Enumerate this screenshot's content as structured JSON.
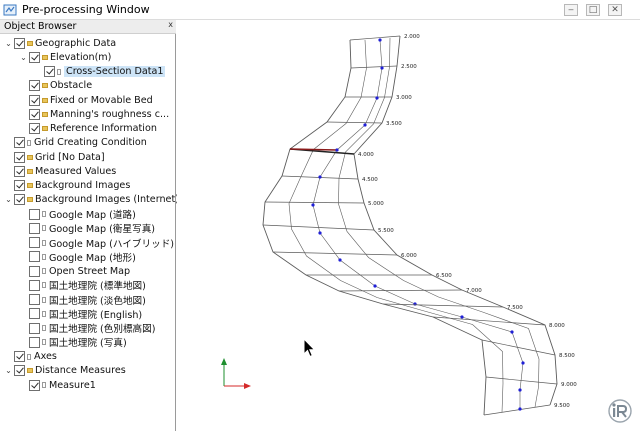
{
  "window": {
    "title": "Pre-processing Window",
    "minimize": "‒",
    "maximize": "□",
    "close": "✕"
  },
  "panel": {
    "title": "Object Browser",
    "close": "x"
  },
  "tree": [
    {
      "label": "Geographic Data",
      "checked": true,
      "arrow": "expanded",
      "icon": "folder",
      "level": 0
    },
    {
      "label": "Elevation(m)",
      "checked": true,
      "arrow": "expanded",
      "icon": "folder",
      "level": 1
    },
    {
      "label": "Cross-Section Data1",
      "checked": true,
      "arrow": "none",
      "icon": "doc",
      "level": 2,
      "selected": true
    },
    {
      "label": "Obstacle",
      "checked": true,
      "arrow": "none",
      "icon": "folder",
      "level": 1
    },
    {
      "label": "Fixed or Movable Bed",
      "checked": true,
      "arrow": "none",
      "icon": "folder",
      "level": 1
    },
    {
      "label": "Manning's roughness c...",
      "checked": true,
      "arrow": "none",
      "icon": "folder",
      "level": 1
    },
    {
      "label": "Reference Information",
      "checked": true,
      "arrow": "none",
      "icon": "folder",
      "level": 1
    },
    {
      "label": "Grid Creating Condition",
      "checked": true,
      "arrow": "none",
      "icon": "doc",
      "level": 0
    },
    {
      "label": "Grid [No Data]",
      "checked": true,
      "arrow": "none",
      "icon": "folder",
      "level": 0
    },
    {
      "label": "Measured Values",
      "checked": true,
      "arrow": "none",
      "icon": "folder",
      "level": 0
    },
    {
      "label": "Background Images",
      "checked": true,
      "arrow": "none",
      "icon": "folder",
      "level": 0
    },
    {
      "label": "Background Images (Internet)",
      "checked": true,
      "arrow": "expanded",
      "icon": "folder",
      "level": 0
    },
    {
      "label": "Google Map (道路)",
      "checked": false,
      "arrow": "none",
      "icon": "doc",
      "level": 1
    },
    {
      "label": "Google Map (衛星写真)",
      "checked": false,
      "arrow": "none",
      "icon": "doc",
      "level": 1
    },
    {
      "label": "Google Map (ハイブリッド)",
      "checked": false,
      "arrow": "none",
      "icon": "doc",
      "level": 1
    },
    {
      "label": "Google Map (地形)",
      "checked": false,
      "arrow": "none",
      "icon": "doc",
      "level": 1
    },
    {
      "label": "Open Street Map",
      "checked": false,
      "arrow": "none",
      "icon": "doc",
      "level": 1
    },
    {
      "label": "国土地理院 (標準地図)",
      "checked": false,
      "arrow": "none",
      "icon": "doc",
      "level": 1
    },
    {
      "label": "国土地理院 (淡色地図)",
      "checked": false,
      "arrow": "none",
      "icon": "doc",
      "level": 1
    },
    {
      "label": "国土地理院 (English)",
      "checked": false,
      "arrow": "none",
      "icon": "doc",
      "level": 1
    },
    {
      "label": "国土地理院 (色別標高図)",
      "checked": false,
      "arrow": "none",
      "icon": "doc",
      "level": 1
    },
    {
      "label": "国土地理院 (写真)",
      "checked": false,
      "arrow": "none",
      "icon": "doc",
      "level": 1
    },
    {
      "label": "Axes",
      "checked": true,
      "arrow": "none",
      "icon": "doc",
      "level": 0
    },
    {
      "label": "Distance Measures",
      "checked": true,
      "arrow": "expanded",
      "icon": "folder",
      "level": 0
    },
    {
      "label": "Measure1",
      "checked": true,
      "arrow": "none",
      "icon": "doc",
      "level": 1
    }
  ],
  "river": {
    "labels": [
      "2.000",
      "2.500",
      "3.000",
      "3.500",
      "4.000",
      "4.500",
      "5.000",
      "5.500",
      "6.000",
      "6.500",
      "7.000",
      "7.500",
      "8.000",
      "8.500",
      "9.000",
      "9.500"
    ]
  },
  "colors": {
    "grid_line": "#5b5b5b",
    "center_point": "#1f1fd6",
    "selected_section": "#8a1a1a",
    "axis_x": "#d42a2a",
    "axis_y": "#1e8f2e"
  }
}
